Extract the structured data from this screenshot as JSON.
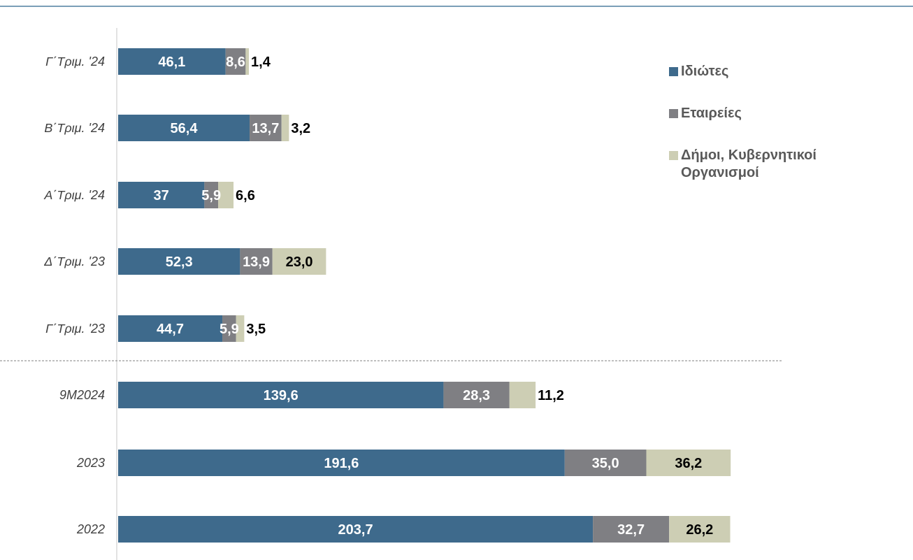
{
  "chart_data": {
    "type": "bar",
    "orientation": "horizontal",
    "stacked": true,
    "categories": [
      "Γ΄Τριμ. '24",
      "Β΄Τριμ. '24",
      "Α΄Τριμ. '24",
      "Δ΄Τριμ. '23",
      "Γ΄Τριμ. '23",
      "9M2024",
      "2023",
      "2022"
    ],
    "series": [
      {
        "name": "Ιδιώτες",
        "color": "#3E6A8C",
        "label_color": "#ffffff",
        "values": [
          46.1,
          56.4,
          37,
          52.3,
          44.7,
          139.6,
          191.6,
          203.7
        ],
        "labels": [
          "46,1",
          "56,4",
          "37",
          "52,3",
          "44,7",
          "139,6",
          "191,6",
          "203,7"
        ]
      },
      {
        "name": "Εταιρείες",
        "color": "#7F7F83",
        "label_color": "#ffffff",
        "values": [
          8.6,
          13.7,
          5.9,
          13.9,
          5.9,
          28.3,
          35.0,
          32.7
        ],
        "labels": [
          "8,6",
          "13,7",
          "5,9",
          "13,9",
          "5,9",
          "28,3",
          "35,0",
          "32,7"
        ]
      },
      {
        "name": "Δήμοι, Κυβερνητικοί Οργανισμοί",
        "color": "#CDCEB4",
        "label_color": "#000000",
        "values": [
          1.4,
          3.2,
          6.6,
          23.0,
          3.5,
          11.2,
          36.2,
          26.2
        ],
        "labels": [
          "1,4",
          "3,2",
          "6,6",
          "23,0",
          "3,5",
          "11,2",
          "36,2",
          "26,2"
        ]
      }
    ],
    "xlim": [
      0,
      263
    ],
    "grid": false,
    "separator_after_category": 4,
    "legend_position": "right",
    "title": "",
    "xlabel": "",
    "ylabel": ""
  }
}
